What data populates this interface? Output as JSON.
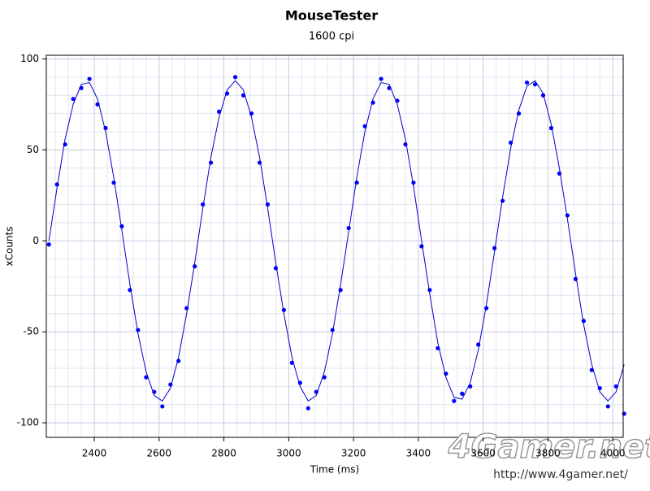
{
  "chart_data": {
    "type": "scatter",
    "title": "MouseTester",
    "subtitle": "1600 cpi",
    "xlabel": "Time (ms)",
    "ylabel": "xCounts",
    "watermark": "4Gamer.net",
    "watermark_url": "http://www.4gamer.net/",
    "xlim": [
      2252,
      4032
    ],
    "ylim": [
      -108,
      102
    ],
    "xticks": [
      2400,
      2600,
      2800,
      3000,
      3200,
      3400,
      3600,
      3800,
      4000
    ],
    "yticks": [
      -100,
      -50,
      0,
      50,
      100
    ],
    "grid": true,
    "x": [
      2260,
      2285,
      2310,
      2335,
      2360,
      2385,
      2410,
      2435,
      2460,
      2485,
      2510,
      2535,
      2560,
      2585,
      2610,
      2635,
      2660,
      2685,
      2710,
      2735,
      2760,
      2785,
      2810,
      2835,
      2860,
      2885,
      2910,
      2935,
      2960,
      2985,
      3010,
      3035,
      3060,
      3085,
      3110,
      3135,
      3160,
      3185,
      3210,
      3235,
      3260,
      3285,
      3310,
      3335,
      3360,
      3385,
      3410,
      3435,
      3460,
      3485,
      3510,
      3535,
      3560,
      3585,
      3610,
      3635,
      3660,
      3685,
      3710,
      3735,
      3760,
      3785,
      3810,
      3835,
      3860,
      3885,
      3910,
      3935,
      3960,
      3985,
      4010,
      4035
    ],
    "series": [
      {
        "type": "scatter",
        "color": "#0000ff",
        "values": [
          -2,
          31,
          53,
          78,
          84,
          89,
          75,
          62,
          32,
          8,
          -27,
          -49,
          -75,
          -83,
          -91,
          -79,
          -66,
          -37,
          -14,
          20,
          43,
          71,
          81,
          90,
          80,
          70,
          43,
          20,
          -15,
          -38,
          -67,
          -78,
          -92,
          -83,
          -75,
          -49,
          -27,
          7,
          32,
          63,
          76,
          89,
          84,
          77,
          53,
          32,
          -3,
          -27,
          -59,
          -73,
          -88,
          -84,
          -80,
          -57,
          -37,
          -4,
          22,
          54,
          70,
          87,
          86,
          80,
          62,
          37,
          14,
          -21,
          -44,
          -71,
          -81,
          -91,
          -80,
          -95
        ]
      },
      {
        "type": "line",
        "color": "#0000cc",
        "values": [
          0,
          29,
          56,
          75,
          86,
          87,
          78,
          60,
          35,
          6,
          -24,
          -51,
          -72,
          -85,
          -88,
          -81,
          -64,
          -40,
          -12,
          18,
          46,
          68,
          83,
          88,
          83,
          68,
          46,
          18,
          -12,
          -40,
          -64,
          -80,
          -88,
          -85,
          -72,
          -51,
          -24,
          5,
          35,
          60,
          78,
          87,
          86,
          75,
          56,
          30,
          0,
          -29,
          -56,
          -75,
          -86,
          -87,
          -78,
          -60,
          -35,
          -6,
          24,
          51,
          72,
          85,
          88,
          81,
          64,
          40,
          12,
          -18,
          -46,
          -68,
          -83,
          -88,
          -83,
          -68
        ]
      }
    ]
  }
}
